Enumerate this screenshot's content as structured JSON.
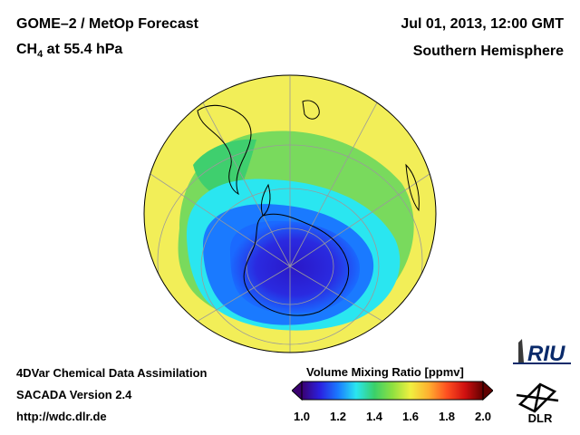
{
  "header": {
    "title_line1": "GOME–2 / MetOp Forecast",
    "title_species": "CH",
    "title_species_sub": "4",
    "title_level": " at 55.4 hPa",
    "date": "Jul 01, 2013, 12:00 GMT",
    "region": "Southern Hemisphere"
  },
  "footer": {
    "line1": "4DVar Chemical Data Assimilation",
    "line2": "SACADA Version 2.4",
    "line3": "http://wdc.dlr.de"
  },
  "colorbar": {
    "title": "Volume Mixing Ratio [ppmv]",
    "ticks": [
      "1.0",
      "1.2",
      "1.4",
      "1.6",
      "1.8",
      "2.0"
    ],
    "range": [
      1.0,
      2.0
    ],
    "colors": [
      "#3a0070",
      "#2a20e0",
      "#1a7aff",
      "#2ae6f0",
      "#3ad06a",
      "#8ee040",
      "#f0f040",
      "#ffb030",
      "#ff5020",
      "#d01010",
      "#600000"
    ]
  },
  "logos": {
    "riu": "RIU",
    "dlr": "DLR"
  },
  "map": {
    "projection": "orthographic, south pole centered",
    "colors": {
      "background_field": "#f2ee58",
      "mid_band": "#3fcf6e",
      "ring": "#2ae6f0",
      "vortex_edge": "#1a7aff",
      "vortex_core": "#2a20d8"
    }
  }
}
